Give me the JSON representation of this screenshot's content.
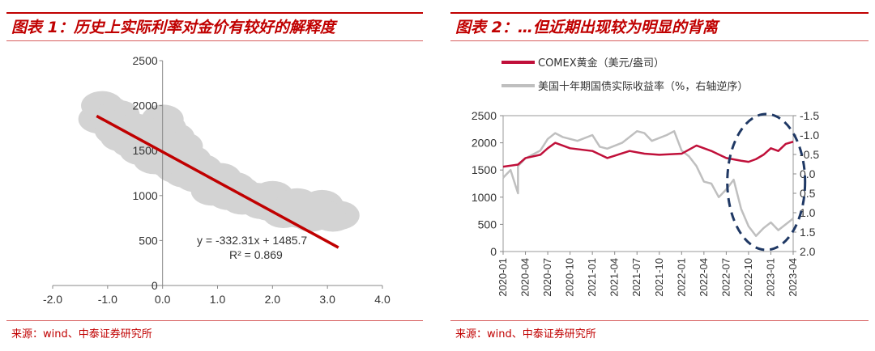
{
  "panel_left": {
    "title": "图表 1：历史上实际利率对金价有较好的解释度",
    "source": "来源：wind、中泰证券研究所"
  },
  "panel_right": {
    "title": "图表 2：…但近期出现较为明显的背离",
    "source": "来源：wind、中泰证券研究所"
  },
  "colors": {
    "accent": "#c00000",
    "gold": "#c0103a",
    "tips": "#bfbfbf",
    "scatter": "#d3d3d3",
    "fit": "#c00000",
    "ellipse": "#1f3864"
  },
  "chart_data": [
    {
      "type": "scatter",
      "title": "",
      "xlim": [
        -2.0,
        4.0
      ],
      "ylim": [
        0,
        2500
      ],
      "x_ticks": [
        "-2.0",
        "-1.0",
        "0.0",
        "1.0",
        "2.0",
        "3.0",
        "4.0"
      ],
      "y_ticks": [
        "0",
        "500",
        "1000",
        "1500",
        "2000",
        "2500"
      ],
      "points": [
        [
          -1.15,
          1850
        ],
        [
          -1.1,
          2000
        ],
        [
          -1.0,
          1950
        ],
        [
          -0.95,
          1800
        ],
        [
          -0.9,
          1880
        ],
        [
          -0.85,
          1720
        ],
        [
          -0.8,
          1900
        ],
        [
          -0.75,
          1650
        ],
        [
          -0.7,
          1800
        ],
        [
          -0.6,
          1700
        ],
        [
          -0.55,
          1580
        ],
        [
          -0.5,
          1750
        ],
        [
          -0.45,
          1600
        ],
        [
          -0.4,
          1500
        ],
        [
          -0.3,
          1650
        ],
        [
          -0.25,
          1480
        ],
        [
          -0.2,
          1550
        ],
        [
          -0.15,
          1400
        ],
        [
          -0.1,
          1600
        ],
        [
          0.0,
          1850
        ],
        [
          0.05,
          1750
        ],
        [
          0.1,
          1500
        ],
        [
          0.15,
          1350
        ],
        [
          0.2,
          1650
        ],
        [
          0.25,
          1300
        ],
        [
          0.3,
          1450
        ],
        [
          0.4,
          1250
        ],
        [
          0.45,
          1350
        ],
        [
          0.5,
          1400
        ],
        [
          0.6,
          1200
        ],
        [
          0.7,
          1300
        ],
        [
          0.8,
          1150
        ],
        [
          0.9,
          1050
        ],
        [
          1.0,
          1100
        ],
        [
          1.1,
          1150
        ],
        [
          1.2,
          1000
        ],
        [
          1.3,
          1100
        ],
        [
          1.4,
          1050
        ],
        [
          1.5,
          1000
        ],
        [
          1.6,
          950
        ],
        [
          1.7,
          980
        ],
        [
          1.8,
          900
        ],
        [
          1.9,
          950
        ],
        [
          2.0,
          1000
        ],
        [
          2.1,
          850
        ],
        [
          2.2,
          800
        ],
        [
          2.3,
          900
        ],
        [
          2.4,
          850
        ],
        [
          2.5,
          800
        ],
        [
          2.6,
          880
        ],
        [
          2.7,
          760
        ],
        [
          2.8,
          820
        ],
        [
          2.9,
          900
        ],
        [
          3.0,
          830
        ],
        [
          3.1,
          760
        ],
        [
          3.2,
          780
        ],
        [
          -0.05,
          1700
        ],
        [
          0.35,
          1550
        ],
        [
          0.55,
          1250
        ],
        [
          1.05,
          1200
        ],
        [
          1.45,
          950
        ],
        [
          1.95,
          880
        ],
        [
          2.45,
          920
        ],
        [
          2.95,
          780
        ]
      ],
      "trendline": {
        "slope": -332.31,
        "intercept": 1485.7,
        "x_range": [
          -1.2,
          3.2
        ]
      },
      "annotation": {
        "equation": "y = -332.31x + 1485.7",
        "r2": "R² = 0.869"
      }
    },
    {
      "type": "line",
      "title": "",
      "series": [
        {
          "name": "COMEX黄金（美元/盎司）",
          "axis": "left",
          "x": [
            "2020-01",
            "2020-03",
            "2020-04",
            "2020-06",
            "2020-07",
            "2020-08",
            "2020-10",
            "2021-01",
            "2021-03",
            "2021-06",
            "2021-08",
            "2021-10",
            "2022-01",
            "2022-03",
            "2022-05",
            "2022-07",
            "2022-09",
            "2022-10",
            "2022-11",
            "2022-12",
            "2023-01",
            "2023-02",
            "2023-03",
            "2023-04"
          ],
          "values": [
            1560,
            1600,
            1720,
            1780,
            1900,
            2000,
            1900,
            1850,
            1720,
            1850,
            1800,
            1780,
            1800,
            1950,
            1850,
            1720,
            1670,
            1650,
            1700,
            1780,
            1900,
            1850,
            1980,
            2020
          ]
        },
        {
          "name": "美国十年期国债实际收益率（%，右轴逆序）",
          "axis": "right",
          "x": [
            "2020-01",
            "2020-02",
            "2020-03",
            "2020-03",
            "2020-04",
            "2020-05",
            "2020-06",
            "2020-07",
            "2020-08",
            "2020-09",
            "2020-11",
            "2021-01",
            "2021-02",
            "2021-03",
            "2021-05",
            "2021-07",
            "2021-08",
            "2021-09",
            "2021-11",
            "2021-12",
            "2022-01",
            "2022-02",
            "2022-03",
            "2022-04",
            "2022-05",
            "2022-06",
            "2022-07",
            "2022-08",
            "2022-09",
            "2022-10",
            "2022-11",
            "2022-12",
            "2023-01",
            "2023-02",
            "2023-03",
            "2023-04"
          ],
          "values": [
            0.1,
            -0.1,
            0.5,
            -0.2,
            -0.4,
            -0.5,
            -0.6,
            -0.9,
            -1.05,
            -0.95,
            -0.85,
            -1.0,
            -0.7,
            -0.65,
            -0.8,
            -1.1,
            -1.05,
            -0.85,
            -1.0,
            -1.1,
            -0.6,
            -0.45,
            -0.2,
            0.2,
            0.25,
            0.6,
            0.4,
            0.15,
            0.9,
            1.35,
            1.6,
            1.4,
            1.25,
            1.45,
            1.3,
            1.15
          ]
        }
      ],
      "x_ticks": [
        "2020-01",
        "2020-04",
        "2020-07",
        "2020-10",
        "2021-01",
        "2021-04",
        "2021-07",
        "2021-10",
        "2022-01",
        "2022-04",
        "2022-07",
        "2022-10",
        "2023-01",
        "2023-04"
      ],
      "y_left": {
        "lim": [
          0,
          2500
        ],
        "ticks": [
          "0",
          "500",
          "1000",
          "1500",
          "2000",
          "2500"
        ]
      },
      "y_right": {
        "lim": [
          2.0,
          -1.5
        ],
        "inverted": true,
        "ticks": [
          "-1.5",
          "-1.0",
          "-0.5",
          "0.0",
          "0.5",
          "1.0",
          "1.5",
          "2.0"
        ]
      },
      "legend_position": "top-left",
      "highlight": "dashed ellipse around 2022-07 to 2023-04"
    }
  ]
}
